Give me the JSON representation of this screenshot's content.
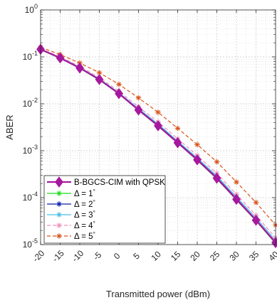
{
  "chart_data": {
    "type": "line",
    "title": "",
    "xlabel": "Transmitted power (dBm)",
    "ylabel": "ABER",
    "xlim": [
      -20,
      40
    ],
    "ylim": [
      1e-05,
      1
    ],
    "yscale": "log",
    "grid": true,
    "minor_grid": true,
    "legend_position": "bottom-left",
    "x_ticks": [
      "-20",
      "-15",
      "-10",
      "-5",
      "0",
      "5",
      "10",
      "15",
      "20",
      "25",
      "30",
      "35",
      "40"
    ],
    "y_ticks": [
      {
        "base": "10",
        "exp": "0"
      },
      {
        "base": "10",
        "exp": "-1"
      },
      {
        "base": "10",
        "exp": "-2"
      },
      {
        "base": "10",
        "exp": "-3"
      },
      {
        "base": "10",
        "exp": "-4"
      },
      {
        "base": "10",
        "exp": "-5"
      }
    ],
    "x": [
      -20,
      -15,
      -10,
      -5,
      0,
      5,
      10,
      15,
      20,
      25,
      30,
      35,
      40
    ],
    "series": [
      {
        "name": "B-BGCS-CIM with QPSK",
        "color": "#a6199e",
        "marker": "diamond",
        "line": "solid",
        "values": [
          0.145,
          0.095,
          0.058,
          0.033,
          0.0165,
          0.0074,
          0.0034,
          0.00148,
          0.00064,
          0.00026,
          9.2e-05,
          3.3e-05,
          1.1e-05
        ]
      },
      {
        "name": "Δ = 1°",
        "name_text": "Δ = 1",
        "color": "#1adb1a",
        "marker": "star",
        "line": "solid",
        "values": [
          0.142,
          0.093,
          0.057,
          0.032,
          0.0162,
          0.0073,
          0.0033,
          0.00146,
          0.00062,
          0.00025,
          8.9e-05,
          3.2e-05,
          1.05e-05
        ]
      },
      {
        "name": "Δ = 2°",
        "name_text": "Δ = 2",
        "color": "#0a1aa8",
        "marker": "star",
        "line": "solid",
        "values": [
          0.143,
          0.094,
          0.058,
          0.033,
          0.0166,
          0.0075,
          0.0035,
          0.00152,
          0.00066,
          0.00027,
          9.6e-05,
          3.4e-05,
          1.13e-05
        ]
      },
      {
        "name": "Δ = 3°",
        "name_text": "Δ = 3",
        "color": "#48bde6",
        "marker": "star",
        "line": "solid",
        "values": [
          0.146,
          0.097,
          0.06,
          0.034,
          0.0172,
          0.0079,
          0.0037,
          0.0016,
          0.0007,
          0.00029,
          0.000104,
          3.7e-05,
          1.23e-05
        ]
      },
      {
        "name": "Δ = 4°",
        "name_text": "Δ = 4",
        "color": "#f28fc0",
        "marker": "star",
        "line": "dashed",
        "values": [
          0.15,
          0.1,
          0.063,
          0.036,
          0.0185,
          0.0086,
          0.0041,
          0.0018,
          0.00079,
          0.00033,
          0.000118,
          4.2e-05,
          1.4e-05
        ]
      },
      {
        "name": "Δ = 5°",
        "name_text": "Δ = 5",
        "color": "#d95319",
        "marker": "star",
        "line": "dashed",
        "values": [
          0.16,
          0.112,
          0.074,
          0.046,
          0.026,
          0.0134,
          0.0066,
          0.003,
          0.00135,
          0.00058,
          0.000215,
          7.9e-05,
          2.6e-05
        ]
      }
    ]
  },
  "legend": {
    "degree_symbol": "°",
    "items": [
      "B-BGCS-CIM with QPSK",
      "Δ = 1",
      "Δ = 2",
      "Δ = 3",
      "Δ = 4",
      "Δ = 5"
    ]
  }
}
